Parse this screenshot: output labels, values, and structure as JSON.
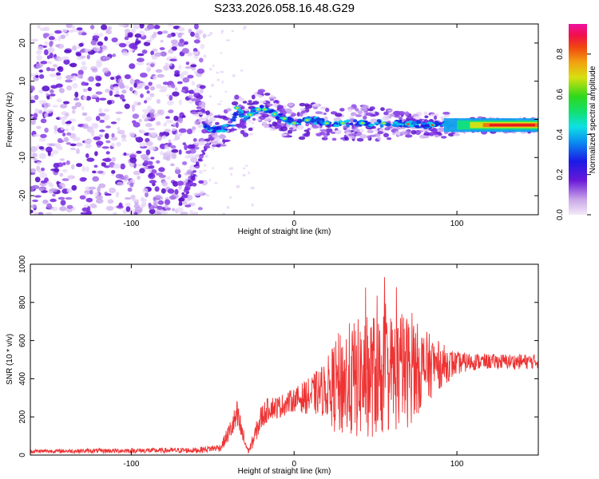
{
  "title": "S233.2026.058.16.48.G29",
  "chart_data": [
    {
      "type": "heatmap",
      "xlabel": "Height of straight line (km)",
      "ylabel": "Frequency (Hz)",
      "xlim": [
        -162,
        150
      ],
      "ylim": [
        -25,
        25
      ],
      "x_ticks": [
        {
          "value": -100,
          "label": "-100"
        },
        {
          "value": 0,
          "label": "0"
        },
        {
          "value": 100,
          "label": "100"
        }
      ],
      "y_ticks": [
        {
          "value": -20,
          "label": "-20"
        },
        {
          "value": -10,
          "label": "-10"
        },
        {
          "value": 0,
          "label": "0"
        },
        {
          "value": 10,
          "label": "10"
        },
        {
          "value": 20,
          "label": "20"
        }
      ],
      "ridge": {
        "x": [
          -55,
          -45,
          -38,
          -35,
          -30,
          -25,
          -20,
          -10,
          0,
          10,
          20,
          40,
          60,
          80,
          100,
          120,
          150
        ],
        "y": [
          -2,
          -3,
          -1,
          3,
          0,
          2,
          3,
          1,
          -1,
          0,
          -1,
          -1,
          -1,
          -1.5,
          -1.5,
          -1.5,
          -1.5
        ]
      },
      "colorbar": {
        "label": "Normalized spectral amplitude",
        "range": [
          0,
          0.95
        ],
        "ticks": [
          {
            "value": 0.0,
            "label": "0.0"
          },
          {
            "value": 0.2,
            "label": "0.2"
          },
          {
            "value": 0.4,
            "label": "0.4"
          },
          {
            "value": 0.6,
            "label": "0.6"
          },
          {
            "value": 0.8,
            "label": "0.8"
          }
        ]
      }
    },
    {
      "type": "line",
      "xlabel": "Height of straight line (km)",
      "ylabel": "SNR (10 * v/v)",
      "xlim": [
        -162,
        150
      ],
      "ylim": [
        0,
        1000
      ],
      "x_ticks": [
        {
          "value": -100,
          "label": "-100"
        },
        {
          "value": 0,
          "label": "0"
        },
        {
          "value": 100,
          "label": "100"
        }
      ],
      "y_ticks": [
        {
          "value": 0,
          "label": "0"
        },
        {
          "value": 200,
          "label": "200"
        },
        {
          "value": 400,
          "label": "400"
        },
        {
          "value": 600,
          "label": "600"
        },
        {
          "value": 800,
          "label": "800"
        },
        {
          "value": 1000,
          "label": "1000"
        }
      ],
      "envelope": {
        "x": [
          -162,
          -60,
          -45,
          -38,
          -35,
          -30,
          -28,
          -25,
          -20,
          -15,
          -10,
          0,
          10,
          20,
          25,
          30,
          40,
          50,
          60,
          70,
          80,
          90,
          100,
          110,
          120,
          130,
          150
        ],
        "base": [
          20,
          25,
          40,
          150,
          200,
          60,
          20,
          80,
          200,
          250,
          250,
          290,
          310,
          350,
          360,
          380,
          400,
          420,
          430,
          440,
          460,
          470,
          480,
          490,
          490,
          490,
          490
        ],
        "amp": [
          10,
          15,
          20,
          60,
          90,
          40,
          10,
          40,
          70,
          60,
          60,
          60,
          100,
          150,
          250,
          300,
          320,
          330,
          320,
          300,
          200,
          120,
          60,
          45,
          40,
          40,
          40
        ]
      },
      "color": "#ee3333"
    }
  ]
}
